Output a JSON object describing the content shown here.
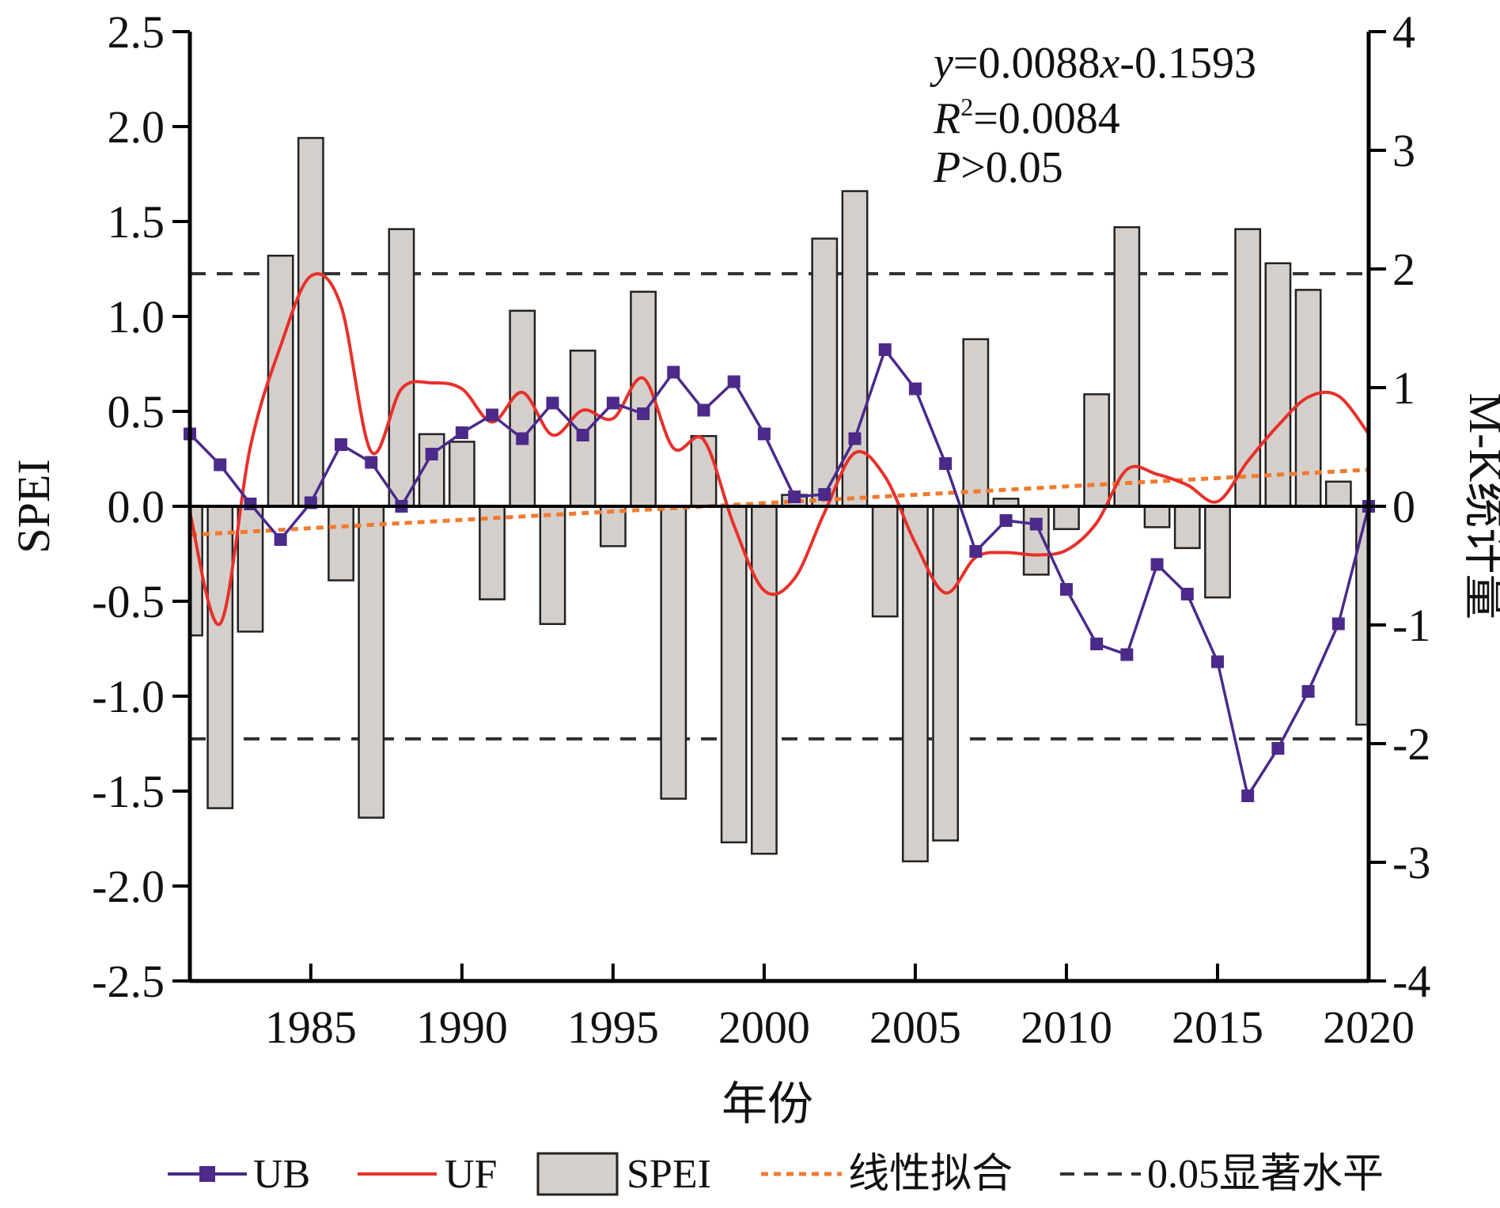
{
  "chart_data": {
    "type": "bar+line",
    "xlabel": "年份",
    "ylabel_left": "SPEI",
    "ylabel_right": "M-K统计量",
    "xlim": [
      1981,
      2020
    ],
    "xticks": [
      1985,
      1990,
      1995,
      2000,
      2005,
      2010,
      2015,
      2020
    ],
    "ylim_left": [
      -2.5,
      2.5
    ],
    "yticks_left": [
      "2.5",
      "2.0",
      "1.5",
      "1.0",
      "0.5",
      "0.0",
      "-0.5",
      "-1.0",
      "-1.5",
      "-2.0",
      "-2.5"
    ],
    "ylim_right": [
      -4,
      4
    ],
    "yticks_right": [
      "4",
      "3",
      "2",
      "1",
      "0",
      "-1",
      "-2",
      "-3",
      "-4"
    ],
    "years": [
      1981,
      1982,
      1983,
      1984,
      1985,
      1986,
      1987,
      1988,
      1989,
      1990,
      1991,
      1992,
      1993,
      1994,
      1995,
      1996,
      1997,
      1998,
      1999,
      2000,
      2001,
      2002,
      2003,
      2004,
      2005,
      2006,
      2007,
      2008,
      2009,
      2010,
      2011,
      2012,
      2013,
      2014,
      2015,
      2016,
      2017,
      2018,
      2019,
      2020
    ],
    "spei": [
      -0.68,
      -1.59,
      -0.66,
      1.32,
      1.94,
      -0.39,
      -1.64,
      1.46,
      0.38,
      0.34,
      -0.49,
      1.03,
      -0.62,
      0.82,
      -0.21,
      1.13,
      -1.54,
      0.37,
      -1.77,
      -1.83,
      0.06,
      1.41,
      1.66,
      -0.58,
      -1.87,
      -1.76,
      0.88,
      0.04,
      -0.36,
      -0.12,
      0.59,
      1.47,
      -0.11,
      -0.22,
      -0.48,
      1.46,
      1.28,
      1.14,
      0.13,
      -1.15
    ],
    "ub": [
      0.61,
      0.35,
      0.02,
      -0.28,
      0.03,
      0.52,
      0.37,
      0.0,
      0.44,
      0.62,
      0.77,
      0.57,
      0.87,
      0.6,
      0.87,
      0.78,
      1.13,
      0.81,
      1.05,
      0.61,
      0.08,
      0.1,
      0.57,
      1.32,
      0.99,
      0.36,
      -0.38,
      -0.12,
      -0.15,
      -0.7,
      -1.16,
      -1.25,
      -0.49,
      -0.74,
      -1.31,
      -2.44,
      -2.04,
      -1.56,
      -0.99,
      0.0
    ],
    "uf": [
      -0.05,
      -0.99,
      0.5,
      1.35,
      1.94,
      1.69,
      0.46,
      0.99,
      1.04,
      0.99,
      0.71,
      0.96,
      0.6,
      0.81,
      0.74,
      1.08,
      0.49,
      0.56,
      -0.16,
      -0.71,
      -0.61,
      -0.05,
      0.45,
      0.25,
      -0.31,
      -0.73,
      -0.43,
      -0.39,
      -0.41,
      -0.37,
      -0.14,
      0.31,
      0.27,
      0.18,
      0.04,
      0.38,
      0.68,
      0.92,
      0.93,
      0.61
    ],
    "trend": {
      "slope": 0.0088,
      "intercept": -0.1593
    },
    "significance": [
      1.96,
      -1.96
    ],
    "annotations": [
      "y=0.0088x-0.1593",
      "R2=0.0084",
      "P>0.05"
    ],
    "legend": [
      {
        "name": "UB",
        "color": "#4b2a8a"
      },
      {
        "name": "UF",
        "color": "#e8302a"
      },
      {
        "name": "SPEI",
        "color": "#d5cfcb"
      },
      {
        "name": "线性拟合",
        "color": "#f07a2e"
      },
      {
        "name": "0.05显著水平",
        "color": "#333333"
      }
    ]
  },
  "text": {
    "xlabel": "年份",
    "ylabel_left": "SPEI",
    "ylabel_right": "M-K统计量",
    "eq_y": "y",
    "eq_rest": "=0.0088",
    "eq_x": "x",
    "eq_tail": "-0.1593",
    "r2_r": "R",
    "r2_sup": "2",
    "r2_val": "=0.0084",
    "p_p": "P",
    "p_val": ">0.05",
    "legend_ub": "UB",
    "legend_uf": "UF",
    "legend_spei": "SPEI",
    "legend_fit": "线性拟合",
    "legend_sig": "0.05显著水平"
  }
}
